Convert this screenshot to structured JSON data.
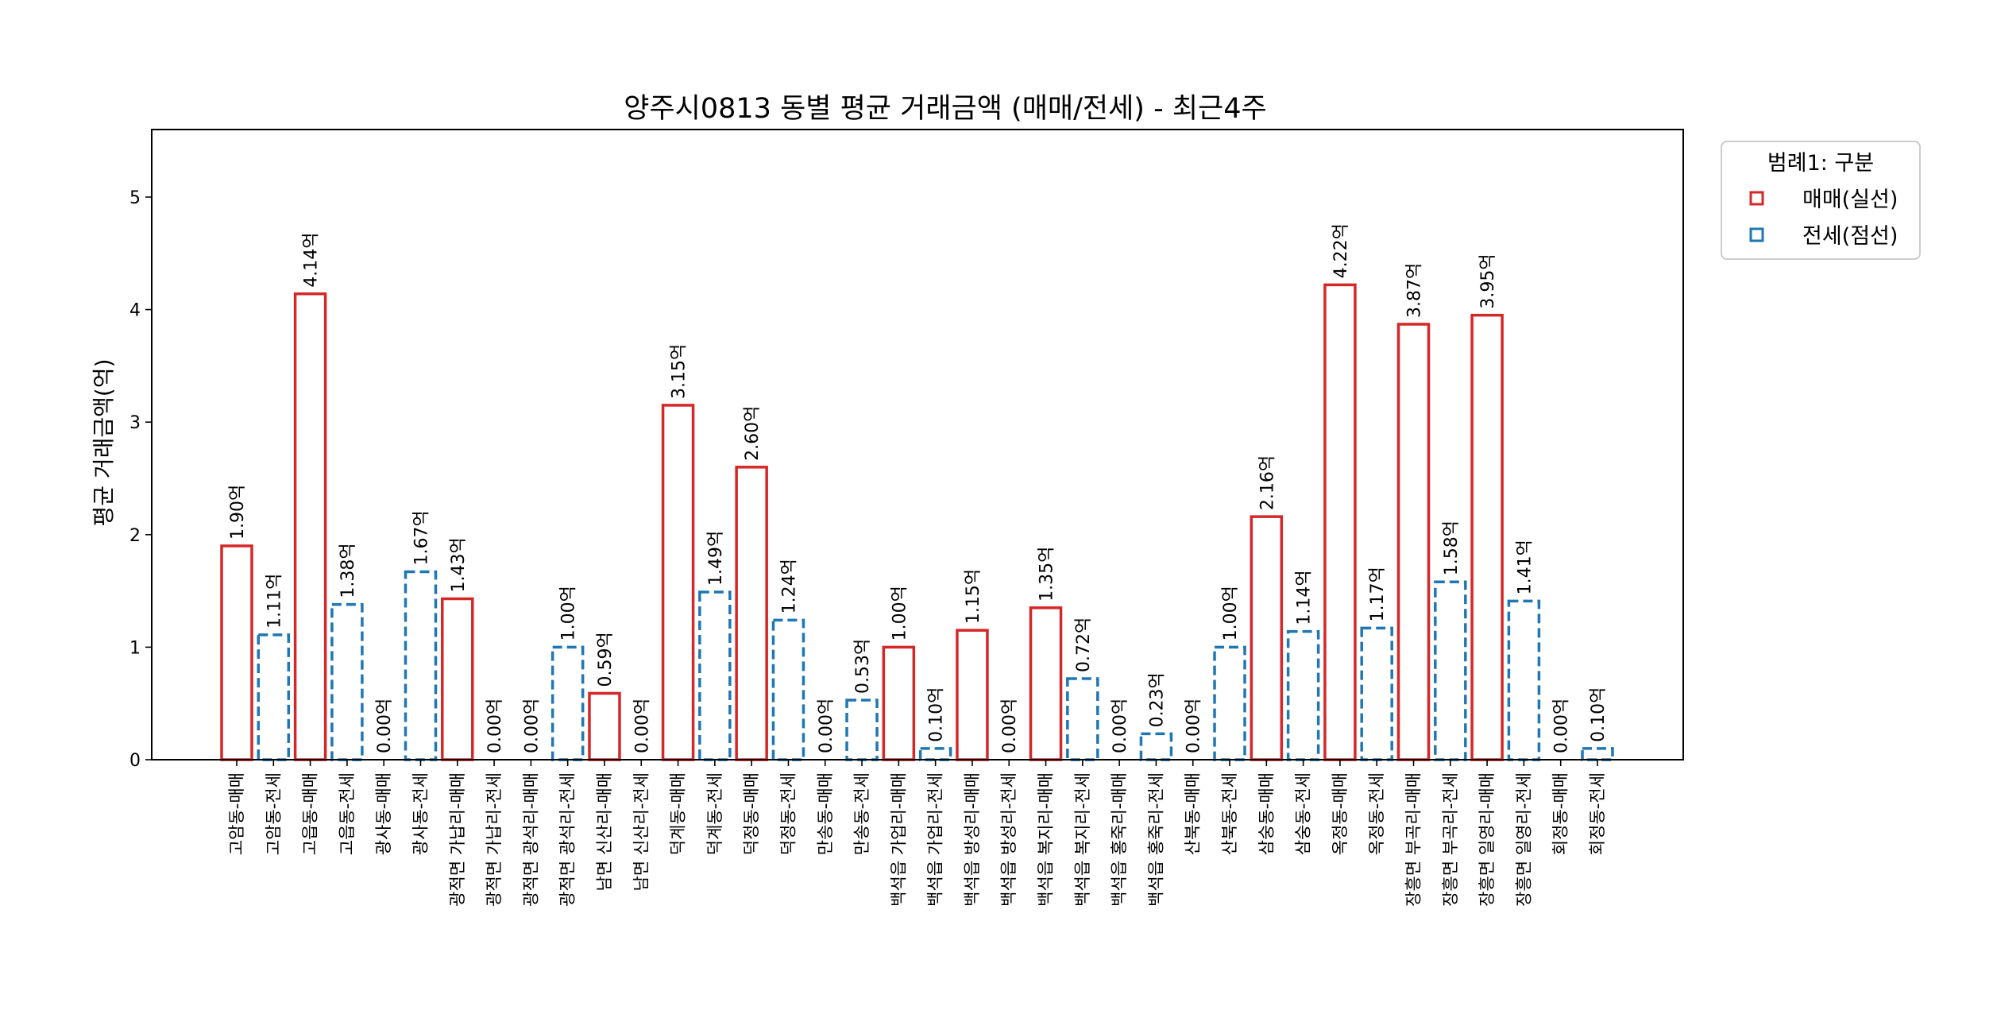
{
  "chart_data": {
    "type": "bar",
    "title": "양주시0813 동별 평균 거래금액 (매매/전세) - 최근4주",
    "xlabel": "",
    "ylabel": "평균 거래금액(억)",
    "ylim": [
      0,
      5.6
    ],
    "yticks": [
      "0",
      "1",
      "2",
      "3",
      "4",
      "5"
    ],
    "grid": false,
    "legend": {
      "title": "범례1: 구분",
      "placement": "outside-top-right",
      "entries": [
        {
          "label": "매매(실선)",
          "color": "#d62728",
          "style": "solid"
        },
        {
          "label": "전세(점선)",
          "color": "#1f77b4",
          "style": "dashed"
        }
      ]
    },
    "colors": {
      "매매": "#d62728",
      "전세": "#1f77b4"
    },
    "value_suffix": "억",
    "categories": [
      "고암동-매매",
      "고암동-전세",
      "고읍동-매매",
      "고읍동-전세",
      "광사동-매매",
      "광사동-전세",
      "광적면 가납리-매매",
      "광적면 가납리-전세",
      "광적면 광석리-매매",
      "광적면 광석리-전세",
      "남면 신산리-매매",
      "남면 신산리-전세",
      "덕계동-매매",
      "덕계동-전세",
      "덕정동-매매",
      "덕정동-전세",
      "만송동-매매",
      "만송동-전세",
      "백석읍 가업리-매매",
      "백석읍 가업리-전세",
      "백석읍 방성리-매매",
      "백석읍 방성리-전세",
      "백석읍 복지리-매매",
      "백석읍 복지리-전세",
      "백석읍 홍죽리-매매",
      "백석읍 홍죽리-전세",
      "산북동-매매",
      "산북동-전세",
      "삼숭동-매매",
      "삼숭동-전세",
      "옥정동-매매",
      "옥정동-전세",
      "장흥면 부곡리-매매",
      "장흥면 부곡리-전세",
      "장흥면 일영리-매매",
      "장흥면 일영리-전세",
      "회정동-매매",
      "회정동-전세"
    ],
    "values": [
      1.9,
      1.11,
      4.14,
      1.38,
      0.0,
      1.67,
      1.43,
      0.0,
      0.0,
      1.0,
      0.59,
      0.0,
      3.15,
      1.49,
      2.6,
      1.24,
      0.0,
      0.53,
      1.0,
      0.1,
      1.15,
      0.0,
      1.35,
      0.72,
      0.0,
      0.23,
      0.0,
      1.0,
      2.16,
      1.14,
      4.22,
      1.17,
      3.87,
      1.58,
      3.95,
      1.41,
      0.0,
      0.1
    ],
    "value_labels": [
      "1.90억",
      "1.11억",
      "4.14억",
      "1.38억",
      "0.00억",
      "1.67억",
      "1.43억",
      "0.00억",
      "0.00억",
      "1.00억",
      "0.59억",
      "0.00억",
      "3.15억",
      "1.49억",
      "2.60억",
      "1.24억",
      "0.00억",
      "0.53억",
      "1.00억",
      "0.10억",
      "1.15억",
      "0.00억",
      "1.35억",
      "0.72억",
      "0.00억",
      "0.23억",
      "0.00억",
      "1.00억",
      "2.16억",
      "1.14억",
      "4.22억",
      "1.17억",
      "3.87억",
      "1.58억",
      "3.95억",
      "1.41억",
      "0.00억",
      "0.10억"
    ]
  }
}
